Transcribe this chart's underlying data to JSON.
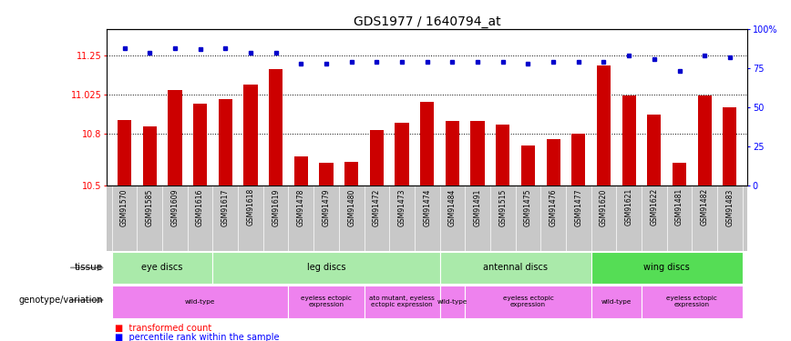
{
  "title": "GDS1977 / 1640794_at",
  "samples": [
    "GSM91570",
    "GSM91585",
    "GSM91609",
    "GSM91616",
    "GSM91617",
    "GSM91618",
    "GSM91619",
    "GSM91478",
    "GSM91479",
    "GSM91480",
    "GSM91472",
    "GSM91473",
    "GSM91474",
    "GSM91484",
    "GSM91491",
    "GSM91515",
    "GSM91475",
    "GSM91476",
    "GSM91477",
    "GSM91620",
    "GSM91621",
    "GSM91622",
    "GSM91481",
    "GSM91482",
    "GSM91483"
  ],
  "red_values": [
    10.88,
    10.84,
    11.05,
    10.97,
    11.0,
    11.08,
    11.17,
    10.67,
    10.63,
    10.64,
    10.82,
    10.86,
    10.98,
    10.87,
    10.87,
    10.85,
    10.73,
    10.77,
    10.8,
    11.19,
    11.02,
    10.91,
    10.63,
    11.02,
    10.95
  ],
  "blue_values": [
    88,
    85,
    88,
    87,
    88,
    85,
    85,
    78,
    78,
    79,
    79,
    79,
    79,
    79,
    79,
    79,
    78,
    79,
    79,
    79,
    83,
    81,
    73,
    83,
    82
  ],
  "ylim_left": [
    10.5,
    11.4
  ],
  "ylim_right": [
    0,
    100
  ],
  "yticks_left": [
    10.5,
    10.8,
    11.025,
    11.25
  ],
  "ytick_labels_left": [
    "10.5",
    "10.8",
    "11.025",
    "11.25"
  ],
  "yticks_right": [
    0,
    25,
    50,
    75,
    100
  ],
  "ytick_labels_right": [
    "0",
    "25",
    "50",
    "75",
    "100%"
  ],
  "tissue_groups": [
    {
      "label": "eye discs",
      "start": 0,
      "end": 4,
      "color": "#aaeaaa"
    },
    {
      "label": "leg discs",
      "start": 4,
      "end": 13,
      "color": "#aaeaaa"
    },
    {
      "label": "antennal discs",
      "start": 13,
      "end": 19,
      "color": "#aaeaaa"
    },
    {
      "label": "wing discs",
      "start": 19,
      "end": 25,
      "color": "#55dd55"
    }
  ],
  "genotype_groups": [
    {
      "label": "wild-type",
      "start": 0,
      "end": 7,
      "color": "#ee82ee"
    },
    {
      "label": "eyeless ectopic\nexpression",
      "start": 7,
      "end": 10,
      "color": "#ee82ee"
    },
    {
      "label": "ato mutant, eyeless\nectopic expression",
      "start": 10,
      "end": 13,
      "color": "#ee82ee"
    },
    {
      "label": "wild-type",
      "start": 13,
      "end": 14,
      "color": "#ee82ee"
    },
    {
      "label": "eyeless ectopic\nexpression",
      "start": 14,
      "end": 19,
      "color": "#ee82ee"
    },
    {
      "label": "wild-type",
      "start": 19,
      "end": 21,
      "color": "#ee82ee"
    },
    {
      "label": "eyeless ectopic\nexpression",
      "start": 21,
      "end": 25,
      "color": "#ee82ee"
    }
  ],
  "bar_color": "#cc0000",
  "dot_color": "#0000cc",
  "title_fontsize": 10
}
